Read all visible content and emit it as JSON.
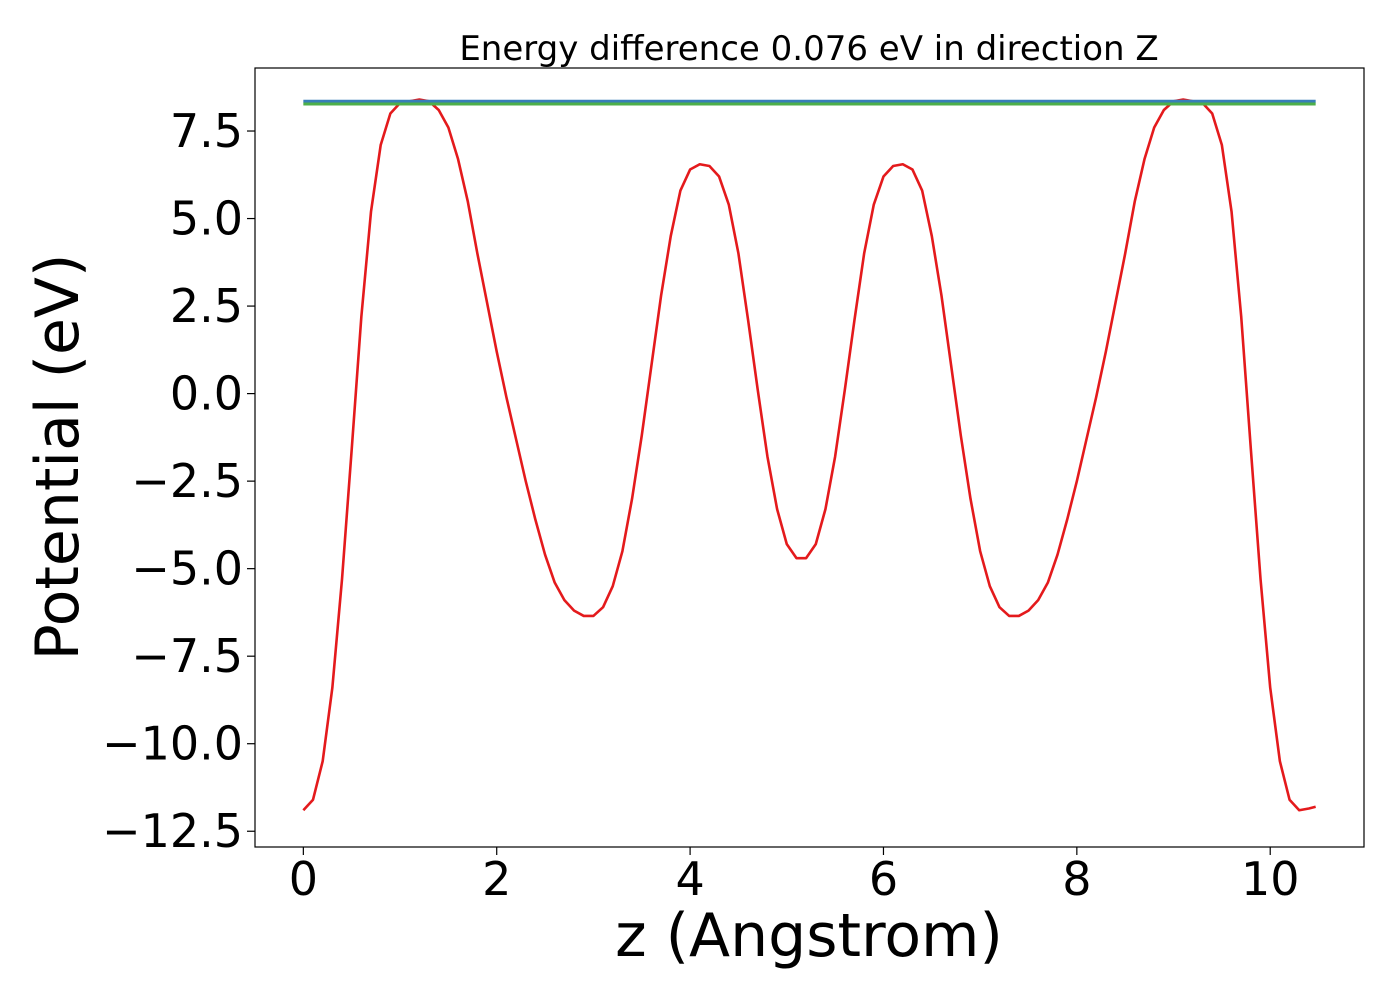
{
  "chart_data": {
    "type": "line",
    "title": "Energy difference 0.076 eV in direction Z",
    "xlabel": "z (Angstrom)",
    "ylabel": "Potential (eV)",
    "xlim": [
      -0.5,
      10.97
    ],
    "ylim": [
      -12.95,
      9.3
    ],
    "xticks": [
      0,
      2,
      4,
      6,
      8,
      10
    ],
    "xtick_labels": [
      "0",
      "2",
      "4",
      "6",
      "8",
      "10"
    ],
    "yticks": [
      7.5,
      5.0,
      2.5,
      0.0,
      -2.5,
      -5.0,
      -7.5,
      -10.0,
      -12.5
    ],
    "ytick_labels": [
      "7.5",
      "5.0",
      "2.5",
      "0.0",
      "−2.5",
      "−5.0",
      "−7.5",
      "−10.0",
      "−12.5"
    ],
    "grid": false,
    "series": [
      {
        "color": "#e41a1c",
        "x": [
          0.0,
          0.1,
          0.2,
          0.3,
          0.4,
          0.5,
          0.6,
          0.7,
          0.8,
          0.9,
          1.0,
          1.1,
          1.2,
          1.3,
          1.4,
          1.5,
          1.6,
          1.7,
          1.8,
          1.9,
          2.0,
          2.1,
          2.2,
          2.3,
          2.4,
          2.5,
          2.6,
          2.7,
          2.8,
          2.9,
          3.0,
          3.1,
          3.2,
          3.3,
          3.4,
          3.5,
          3.6,
          3.7,
          3.8,
          3.9,
          4.0,
          4.1,
          4.2,
          4.3,
          4.4,
          4.5,
          4.6,
          4.7,
          4.8,
          4.9,
          5.0,
          5.1,
          5.2,
          5.3,
          5.4,
          5.5,
          5.6,
          5.7,
          5.8,
          5.9,
          6.0,
          6.1,
          6.2,
          6.3,
          6.4,
          6.5,
          6.6,
          6.7,
          6.8,
          6.9,
          7.0,
          7.1,
          7.2,
          7.3,
          7.4,
          7.5,
          7.6,
          7.7,
          7.8,
          7.9,
          8.0,
          8.1,
          8.2,
          8.3,
          8.4,
          8.5,
          8.6,
          8.7,
          8.8,
          8.9,
          9.0,
          9.1,
          9.2,
          9.3,
          9.4,
          9.5,
          9.6,
          9.7,
          9.8,
          9.9,
          10.0,
          10.1,
          10.2,
          10.3,
          10.4,
          10.47
        ],
        "y": [
          -11.9,
          -11.6,
          -10.5,
          -8.4,
          -5.3,
          -1.6,
          2.2,
          5.2,
          7.1,
          8.0,
          8.3,
          8.35,
          8.4,
          8.35,
          8.1,
          7.6,
          6.7,
          5.5,
          4.0,
          2.6,
          1.2,
          -0.1,
          -1.3,
          -2.5,
          -3.6,
          -4.6,
          -5.4,
          -5.9,
          -6.2,
          -6.35,
          -6.35,
          -6.1,
          -5.5,
          -4.5,
          -3.0,
          -1.2,
          0.8,
          2.8,
          4.5,
          5.8,
          6.4,
          6.55,
          6.5,
          6.2,
          5.4,
          4.0,
          2.1,
          0.1,
          -1.8,
          -3.3,
          -4.3,
          -4.7,
          -4.7,
          -4.3,
          -3.3,
          -1.8,
          0.1,
          2.1,
          4.0,
          5.4,
          6.2,
          6.5,
          6.55,
          6.4,
          5.8,
          4.5,
          2.8,
          0.8,
          -1.2,
          -3.0,
          -4.5,
          -5.5,
          -6.1,
          -6.35,
          -6.35,
          -6.2,
          -5.9,
          -5.4,
          -4.6,
          -3.6,
          -2.5,
          -1.3,
          -0.1,
          1.2,
          2.6,
          4.0,
          5.5,
          6.7,
          7.6,
          8.1,
          8.35,
          8.4,
          8.35,
          8.3,
          8.0,
          7.1,
          5.2,
          2.2,
          -1.6,
          -5.3,
          -8.4,
          -10.5,
          -11.6,
          -11.9,
          -11.85,
          -11.8
        ]
      },
      {
        "color": "#377eb8",
        "x": [
          0.0,
          10.47
        ],
        "y": [
          8.35,
          8.35
        ]
      },
      {
        "color": "#4daf4a",
        "x": [
          0.0,
          10.47
        ],
        "y": [
          8.27,
          8.27
        ]
      }
    ]
  }
}
